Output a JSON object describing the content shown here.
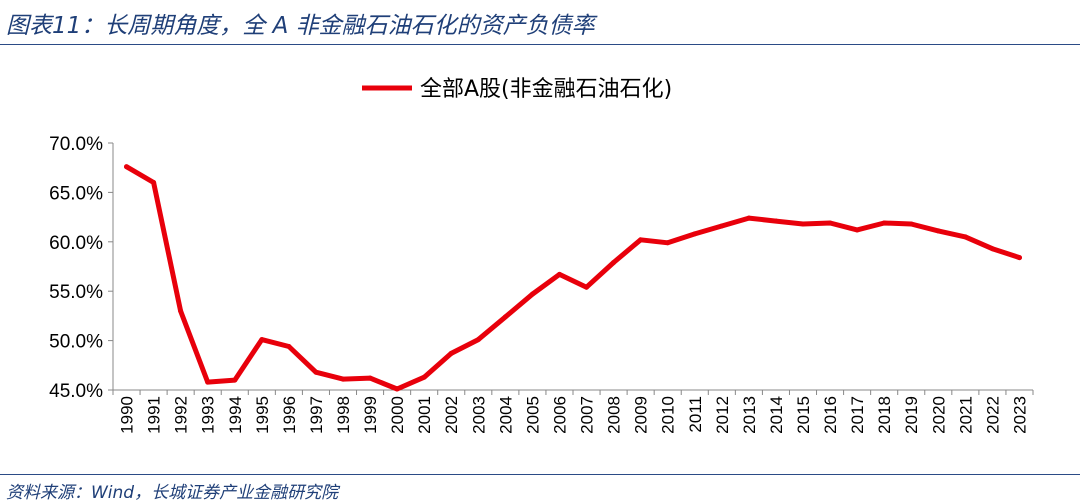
{
  "header": {
    "title": "图表11：长周期角度，全 A 非金融石油石化的资产负债率"
  },
  "footer": {
    "source": "资料来源：Wind，长城证券产业金融研究院"
  },
  "chart_data": {
    "type": "line",
    "x": [
      "1990",
      "1991",
      "1992",
      "1993",
      "1994",
      "1995",
      "1996",
      "1997",
      "1998",
      "1999",
      "2000",
      "2001",
      "2002",
      "2003",
      "2004",
      "2005",
      "2006",
      "2007",
      "2008",
      "2009",
      "2010",
      "2011",
      "2012",
      "2013",
      "2014",
      "2015",
      "2016",
      "2017",
      "2018",
      "2019",
      "2020",
      "2021",
      "2022",
      "2023"
    ],
    "series": [
      {
        "name": "全部A股(非金融石油石化)",
        "color": "#e8000b",
        "values": [
          67.6,
          66.0,
          53.0,
          45.8,
          46.0,
          50.1,
          49.4,
          46.8,
          46.1,
          46.2,
          45.1,
          46.3,
          48.7,
          50.1,
          52.4,
          54.7,
          56.7,
          55.4,
          57.9,
          60.2,
          59.9,
          60.8,
          61.6,
          62.4,
          62.1,
          61.8,
          61.9,
          61.2,
          61.9,
          61.8,
          61.1,
          60.5,
          59.3,
          58.4
        ]
      }
    ],
    "yticks": [
      "45.0%",
      "50.0%",
      "55.0%",
      "60.0%",
      "65.0%",
      "70.0%"
    ],
    "ylim": [
      45,
      70
    ],
    "legend_position": "top-center",
    "grid": false
  }
}
